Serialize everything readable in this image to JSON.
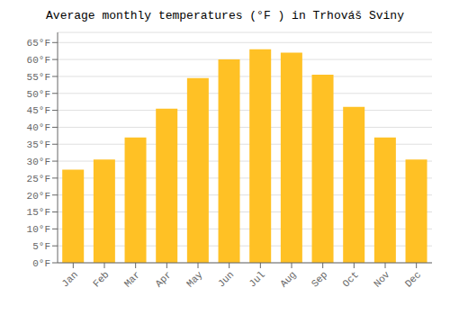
{
  "chart_data": {
    "type": "bar",
    "title": "Average monthly temperatures (°F ) in Trhováš Sviny",
    "categories": [
      "Jan",
      "Feb",
      "Mar",
      "Apr",
      "May",
      "Jun",
      "Jul",
      "Aug",
      "Sep",
      "Oct",
      "Nov",
      "Dec"
    ],
    "values": [
      27.5,
      30.5,
      37.0,
      45.5,
      54.5,
      60.0,
      63.0,
      62.0,
      55.5,
      46.0,
      37.0,
      30.5
    ],
    "color": "#FFC125",
    "ylim": [
      0,
      68
    ],
    "yticks": [
      {
        "value": 0,
        "label": "0°F"
      },
      {
        "value": 5,
        "label": "5°F"
      },
      {
        "value": 10,
        "label": "10°F"
      },
      {
        "value": 15,
        "label": "15°F"
      },
      {
        "value": 20,
        "label": "20°F"
      },
      {
        "value": 25,
        "label": "25°F"
      },
      {
        "value": 30,
        "label": "30°F"
      },
      {
        "value": 35,
        "label": "35°F"
      },
      {
        "value": 40,
        "label": "40°F"
      },
      {
        "value": 45,
        "label": "45°F"
      },
      {
        "value": 50,
        "label": "50°F"
      },
      {
        "value": 55,
        "label": "55°F"
      },
      {
        "value": 60,
        "label": "60°F"
      },
      {
        "value": 65,
        "label": "65°F"
      }
    ],
    "grid": true
  }
}
